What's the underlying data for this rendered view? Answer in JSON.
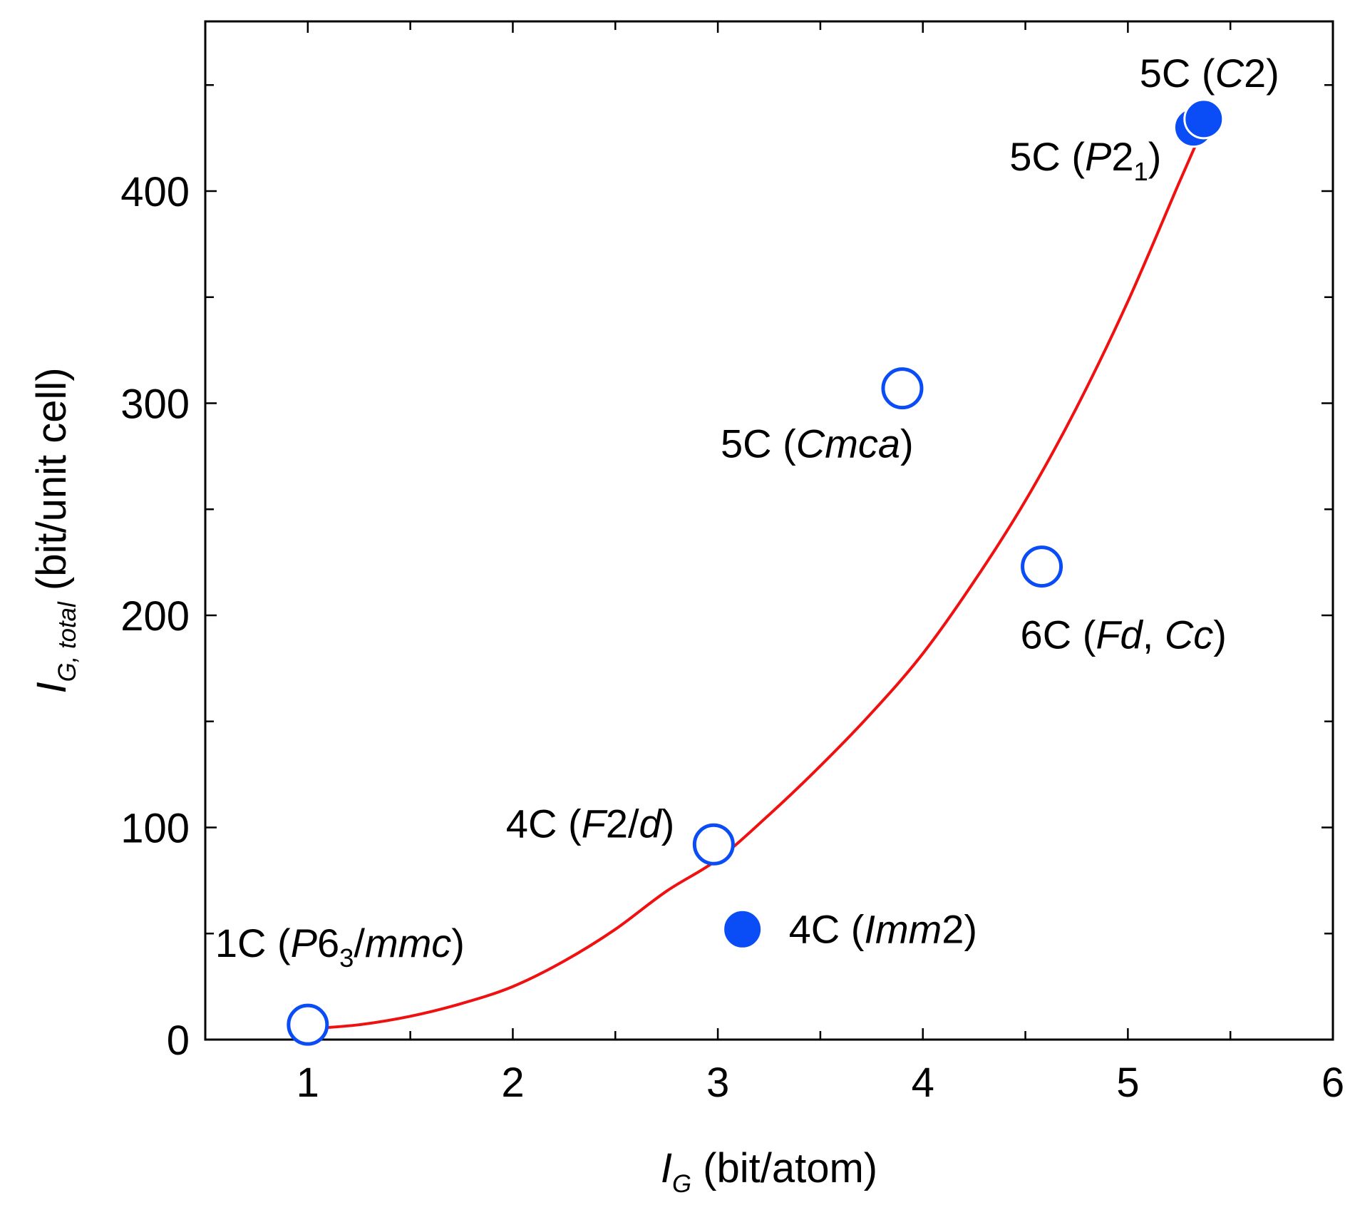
{
  "chart_data": {
    "type": "scatter",
    "title": "",
    "xlabel": {
      "symbol": "I",
      "subscript": "G",
      "unit": " (bit/atom)"
    },
    "ylabel": {
      "symbol": "I",
      "subscript": "G, total",
      "unit": " (bit/unit cell)"
    },
    "xlim": [
      0.5,
      6.0
    ],
    "ylim": [
      0,
      480
    ],
    "x_ticks": [
      1,
      2,
      3,
      4,
      5,
      6
    ],
    "x_tick_labels": [
      "1",
      "2",
      "3",
      "4",
      "5",
      "6"
    ],
    "y_ticks": [
      0,
      100,
      200,
      300,
      400
    ],
    "y_tick_labels": [
      "0",
      "100",
      "200",
      "300",
      "400"
    ],
    "grid": false,
    "colors": {
      "marker": "#0a4cf5",
      "fit": "#f01010",
      "axis": "#000000"
    },
    "series": [
      {
        "name": "open",
        "marker": "open-circle",
        "points": [
          {
            "x": 1.0,
            "y": 7,
            "label": [
              {
                "t": "1C ("
              },
              {
                "t": "P",
                "i": true
              },
              {
                "t": "6"
              },
              {
                "t": "3",
                "sub": true
              },
              {
                "t": "/"
              },
              {
                "t": "mmc",
                "i": true
              },
              {
                "t": ")"
              }
            ],
            "label_pos": "above-left"
          },
          {
            "x": 2.98,
            "y": 92,
            "label": [
              {
                "t": "4C ("
              },
              {
                "t": "F",
                "i": true
              },
              {
                "t": "2/"
              },
              {
                "t": "d",
                "i": true
              },
              {
                "t": ")"
              }
            ],
            "label_pos": "left"
          },
          {
            "x": 3.9,
            "y": 307,
            "label": [
              {
                "t": "5C ("
              },
              {
                "t": "Cmca",
                "i": true
              },
              {
                "t": ")"
              }
            ],
            "label_pos": "below"
          },
          {
            "x": 4.58,
            "y": 223,
            "label": [
              {
                "t": "6C ("
              },
              {
                "t": "Fd",
                "i": true
              },
              {
                "t": ", "
              },
              {
                "t": "Cc",
                "i": true
              },
              {
                "t": ")"
              }
            ],
            "label_pos": "below-right"
          }
        ]
      },
      {
        "name": "filled",
        "marker": "filled-circle",
        "points": [
          {
            "x": 3.12,
            "y": 52,
            "label": [
              {
                "t": "4C ("
              },
              {
                "t": "Imm",
                "i": true
              },
              {
                "t": "2)"
              }
            ],
            "label_pos": "right"
          },
          {
            "x": 5.32,
            "y": 430,
            "label": [
              {
                "t": "5C ("
              },
              {
                "t": "P",
                "i": true
              },
              {
                "t": "2"
              },
              {
                "t": "1",
                "sub": true
              },
              {
                "t": ")"
              }
            ],
            "label_pos": "left"
          },
          {
            "x": 5.37,
            "y": 434,
            "label": [
              {
                "t": "5C ("
              },
              {
                "t": "C",
                "i": true
              },
              {
                "t": "2)"
              }
            ],
            "label_pos": "above"
          }
        ]
      }
    ],
    "fit_curve": {
      "name": "fit",
      "x": [
        1.0,
        1.25,
        1.5,
        1.75,
        2.0,
        2.25,
        2.5,
        2.75,
        3.0,
        3.25,
        3.5,
        3.75,
        4.0,
        4.25,
        4.5,
        4.75,
        5.0,
        5.25,
        5.35
      ],
      "y": [
        5,
        7,
        11,
        17,
        25,
        37,
        52,
        70,
        85,
        106,
        129,
        154,
        182,
        216,
        254,
        298,
        348,
        404,
        426
      ]
    }
  }
}
